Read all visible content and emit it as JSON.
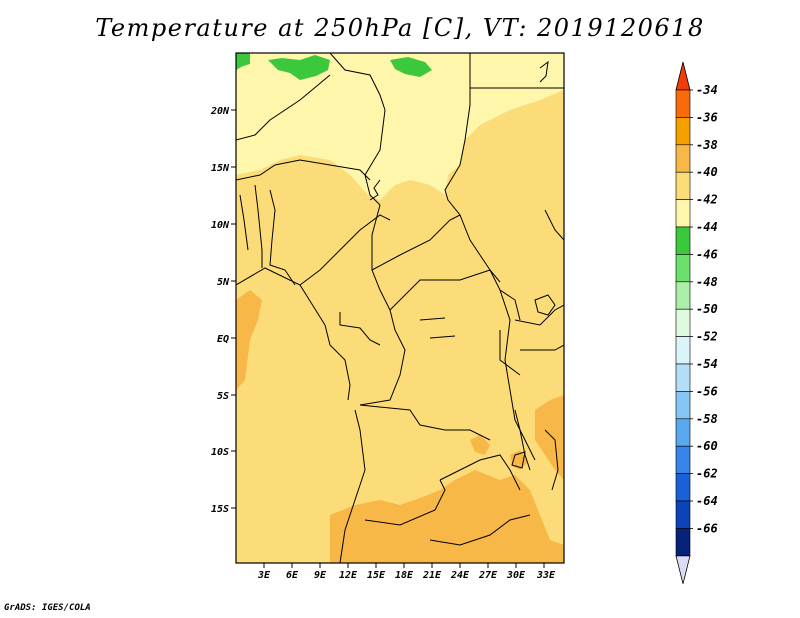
{
  "title": "Temperature at 250hPa [C], VT: 2019120618",
  "credit": "GrADS: IGES/COLA",
  "variable": "Temperature",
  "level": "250hPa",
  "units": "C",
  "valid_time": "2019120618",
  "axes": {
    "lon_labels": [
      "3E",
      "6E",
      "9E",
      "12E",
      "15E",
      "18E",
      "21E",
      "24E",
      "27E",
      "30E",
      "33E"
    ],
    "lat_labels": [
      "20N",
      "15N",
      "10N",
      "5N",
      "EQ",
      "5S",
      "10S",
      "15S"
    ]
  },
  "colorbar": {
    "labels": [
      "-34",
      "-36",
      "-38",
      "-40",
      "-42",
      "-44",
      "-46",
      "-48",
      "-50",
      "-52",
      "-54",
      "-56",
      "-58",
      "-60",
      "-62",
      "-64",
      "-66"
    ],
    "colors": [
      "#f03c0a",
      "#f86a0a",
      "#f6a000",
      "#f8b848",
      "#fcdc78",
      "#fef6aa",
      "#3cc83c",
      "#6ce06c",
      "#aaeeaa",
      "#e0fae0",
      "#daf4fa",
      "#b4def8",
      "#86c6f6",
      "#5aa8ee",
      "#3884e8",
      "#1a60d6",
      "#0c44b8",
      "#06227a",
      "#dcdcf6"
    ]
  },
  "colors": {
    "warm": "#fcdc78",
    "pale": "#fef6aa",
    "orange": "#f8b848",
    "green": "#3cc83c",
    "border": "#000000"
  }
}
